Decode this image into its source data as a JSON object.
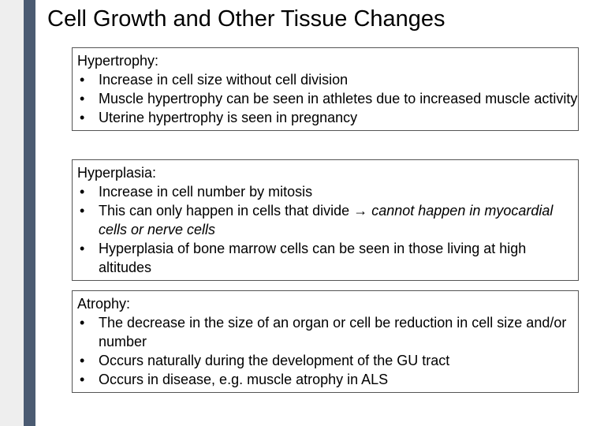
{
  "title": "Cell Growth and Other Tissue Changes",
  "sections": [
    {
      "heading": "Hypertrophy:",
      "bullets": [
        "Increase in cell size without cell division",
        "Muscle hypertrophy can be seen in athletes due to increased muscle activity",
        "Uterine hypertrophy is seen in pregnancy"
      ]
    },
    {
      "heading": "Hyperplasia:",
      "bullets": [
        "Increase in cell number by mitosis",
        {
          "text": "This can only happen in cells that divide",
          "emphasis": "cannot happen in myocardial cells or nerve cells"
        },
        "Hyperplasia of bone marrow cells can be seen in those living at high altitudes"
      ]
    },
    {
      "heading": "Atrophy:",
      "bullets": [
        "The decrease in the size of an organ or cell be reduction in cell size and/or number",
        "Occurs naturally during the development of the GU tract",
        "Occurs in disease, e.g. muscle atrophy in ALS"
      ]
    }
  ]
}
